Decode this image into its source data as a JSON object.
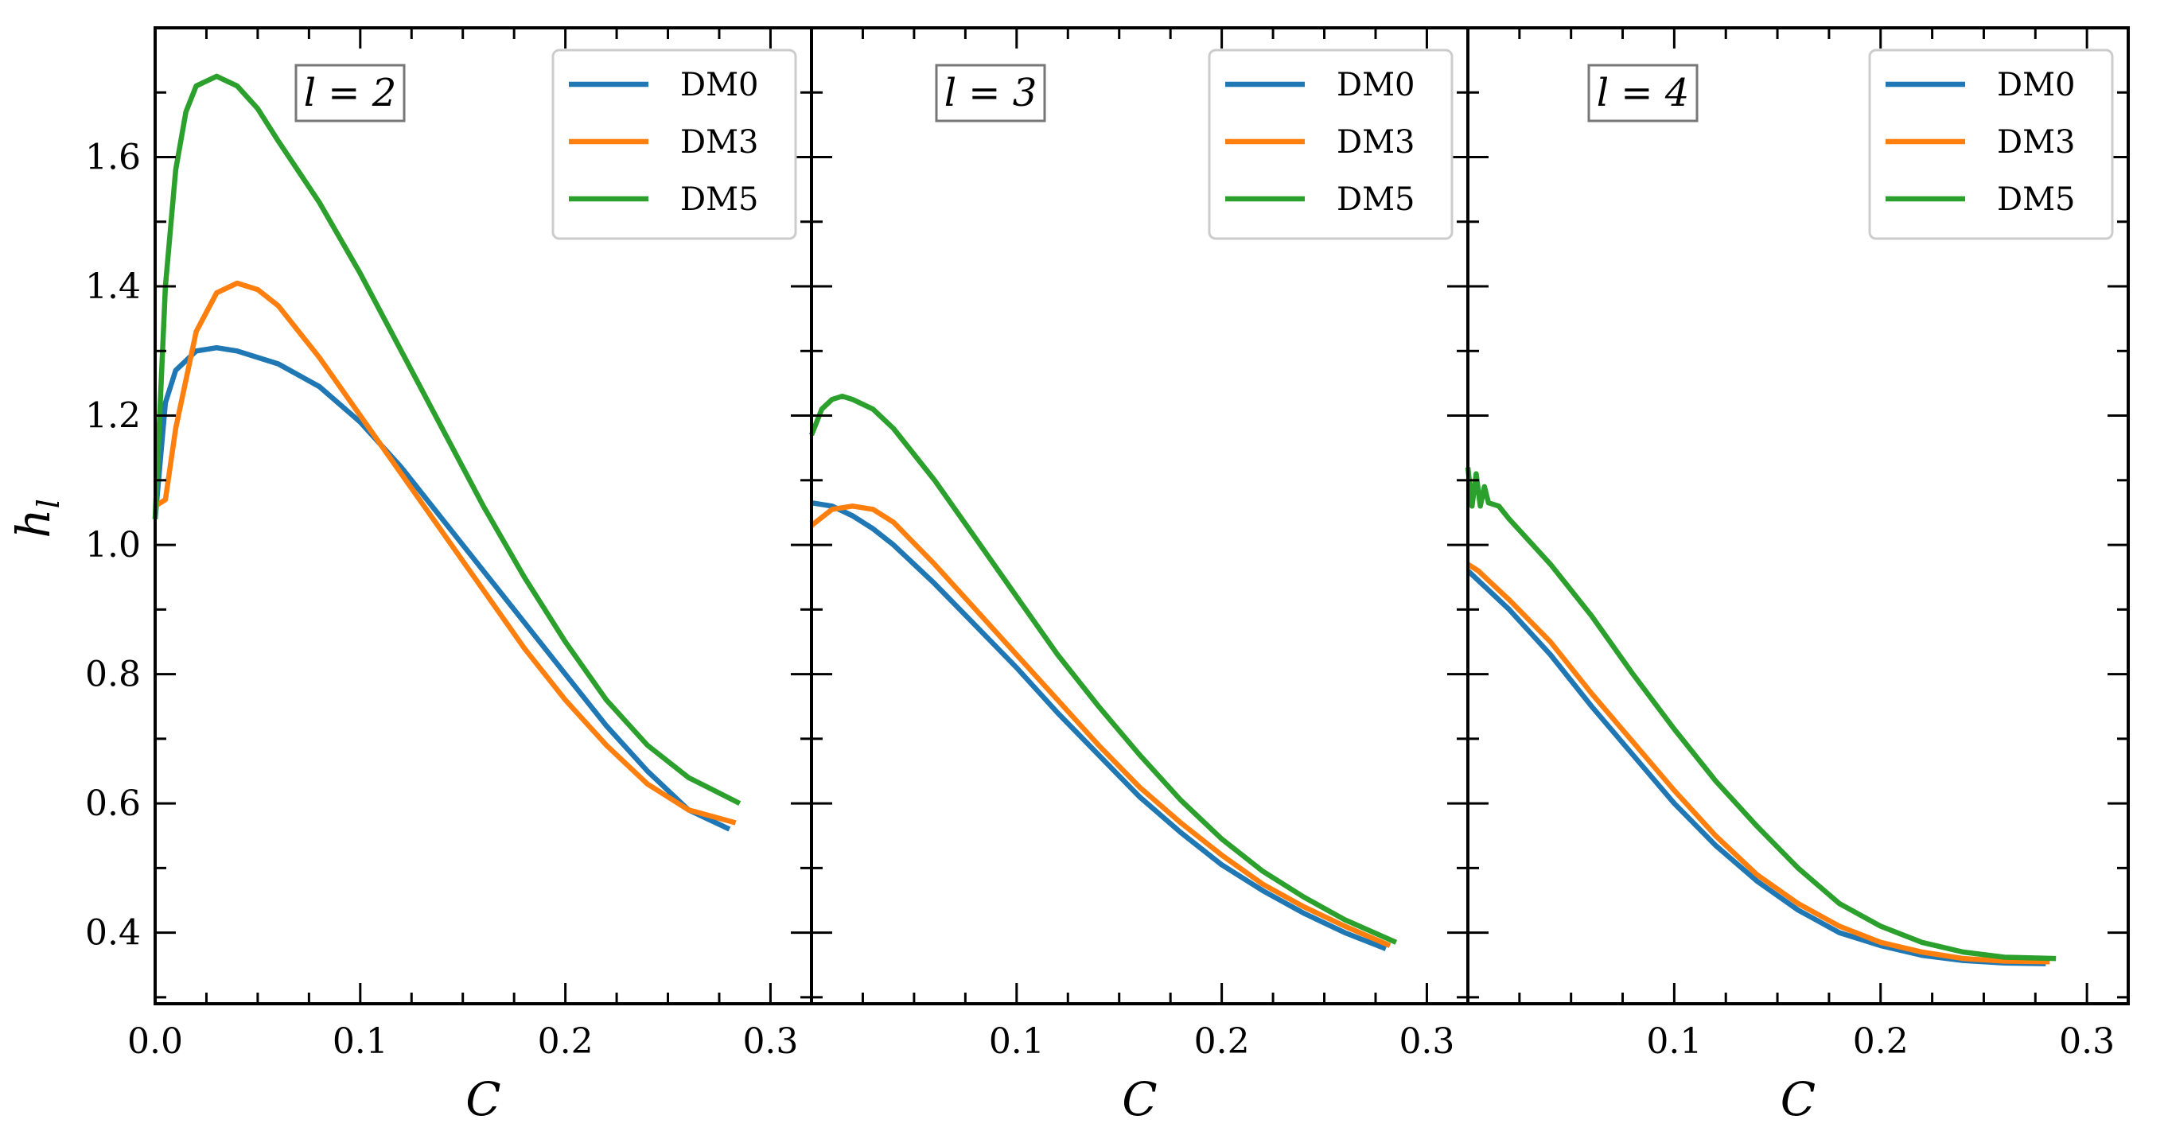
{
  "chart_data": [
    {
      "type": "line",
      "annotation": "l = 2",
      "xlabel": "C",
      "ylabel": "h_l",
      "xlim": [
        0.0,
        0.32
      ],
      "ylim": [
        0.29,
        1.8
      ],
      "xticks": [
        "0.0",
        "0.1",
        "0.2",
        "0.3"
      ],
      "yticks": [
        "0.4",
        "0.6",
        "0.8",
        "1.0",
        "1.2",
        "1.4",
        "1.6"
      ],
      "legend_position": "top-right",
      "series": [
        {
          "name": "DM0",
          "color": "#1f77b4",
          "x": [
            0.0,
            0.005,
            0.01,
            0.02,
            0.03,
            0.04,
            0.06,
            0.08,
            0.1,
            0.12,
            0.14,
            0.16,
            0.18,
            0.2,
            0.22,
            0.24,
            0.26,
            0.28
          ],
          "y": [
            1.04,
            1.22,
            1.27,
            1.3,
            1.305,
            1.3,
            1.28,
            1.245,
            1.19,
            1.12,
            1.04,
            0.96,
            0.88,
            0.8,
            0.72,
            0.65,
            0.59,
            0.56
          ]
        },
        {
          "name": "DM3",
          "color": "#ff7f0e",
          "x": [
            0.0,
            0.005,
            0.01,
            0.02,
            0.03,
            0.04,
            0.05,
            0.06,
            0.08,
            0.1,
            0.12,
            0.14,
            0.16,
            0.18,
            0.2,
            0.22,
            0.24,
            0.26,
            0.283
          ],
          "y": [
            1.06,
            1.07,
            1.18,
            1.33,
            1.39,
            1.405,
            1.395,
            1.37,
            1.29,
            1.2,
            1.11,
            1.02,
            0.93,
            0.84,
            0.76,
            0.69,
            0.63,
            0.59,
            0.57
          ]
        },
        {
          "name": "DM5",
          "color": "#2ca02c",
          "x": [
            0.0,
            0.005,
            0.01,
            0.015,
            0.02,
            0.03,
            0.04,
            0.05,
            0.06,
            0.08,
            0.1,
            0.12,
            0.14,
            0.16,
            0.18,
            0.2,
            0.22,
            0.24,
            0.26,
            0.285
          ],
          "y": [
            1.04,
            1.4,
            1.58,
            1.67,
            1.71,
            1.725,
            1.71,
            1.675,
            1.625,
            1.53,
            1.42,
            1.3,
            1.18,
            1.06,
            0.95,
            0.85,
            0.76,
            0.69,
            0.64,
            0.6
          ]
        }
      ],
      "legend": [
        "DM0",
        "DM3",
        "DM5"
      ]
    },
    {
      "type": "line",
      "annotation": "l = 3",
      "xlabel": "C",
      "xlim": [
        0.0,
        0.32
      ],
      "ylim": [
        0.29,
        1.8
      ],
      "xticks": [
        "0.1",
        "0.2",
        "0.3"
      ],
      "legend_position": "top-right",
      "series": [
        {
          "name": "DM0",
          "color": "#1f77b4",
          "x": [
            0.0,
            0.01,
            0.02,
            0.03,
            0.04,
            0.06,
            0.08,
            0.1,
            0.12,
            0.14,
            0.16,
            0.18,
            0.2,
            0.22,
            0.24,
            0.26,
            0.28
          ],
          "y": [
            1.065,
            1.06,
            1.045,
            1.025,
            1.0,
            0.94,
            0.875,
            0.81,
            0.74,
            0.675,
            0.61,
            0.555,
            0.505,
            0.465,
            0.43,
            0.4,
            0.375
          ]
        },
        {
          "name": "DM3",
          "color": "#ff7f0e",
          "x": [
            0.0,
            0.01,
            0.02,
            0.03,
            0.04,
            0.06,
            0.08,
            0.1,
            0.12,
            0.14,
            0.16,
            0.18,
            0.2,
            0.22,
            0.24,
            0.26,
            0.282
          ],
          "y": [
            1.03,
            1.055,
            1.06,
            1.055,
            1.035,
            0.97,
            0.9,
            0.83,
            0.76,
            0.69,
            0.625,
            0.57,
            0.52,
            0.475,
            0.44,
            0.41,
            0.38
          ]
        },
        {
          "name": "DM5",
          "color": "#2ca02c",
          "x": [
            0.0,
            0.005,
            0.01,
            0.015,
            0.02,
            0.03,
            0.04,
            0.05,
            0.06,
            0.08,
            0.1,
            0.12,
            0.14,
            0.16,
            0.18,
            0.2,
            0.22,
            0.24,
            0.26,
            0.285
          ],
          "y": [
            1.17,
            1.21,
            1.225,
            1.23,
            1.225,
            1.21,
            1.18,
            1.14,
            1.1,
            1.01,
            0.92,
            0.83,
            0.75,
            0.675,
            0.605,
            0.545,
            0.495,
            0.455,
            0.42,
            0.385
          ]
        }
      ],
      "legend": [
        "DM0",
        "DM3",
        "DM5"
      ]
    },
    {
      "type": "line",
      "annotation": "l = 4",
      "xlabel": "C",
      "xlim": [
        0.0,
        0.32
      ],
      "ylim": [
        0.29,
        1.8
      ],
      "xticks": [
        "0.1",
        "0.2",
        "0.3"
      ],
      "legend_position": "top-right",
      "series": [
        {
          "name": "DM0",
          "color": "#1f77b4",
          "x": [
            0.0,
            0.01,
            0.02,
            0.04,
            0.06,
            0.08,
            0.1,
            0.12,
            0.14,
            0.16,
            0.18,
            0.2,
            0.22,
            0.24,
            0.26,
            0.28
          ],
          "y": [
            0.96,
            0.93,
            0.9,
            0.83,
            0.75,
            0.675,
            0.6,
            0.535,
            0.48,
            0.435,
            0.4,
            0.38,
            0.365,
            0.357,
            0.353,
            0.352
          ]
        },
        {
          "name": "DM3",
          "color": "#ff7f0e",
          "x": [
            0.0,
            0.005,
            0.01,
            0.02,
            0.04,
            0.06,
            0.08,
            0.1,
            0.12,
            0.14,
            0.16,
            0.18,
            0.2,
            0.22,
            0.24,
            0.26,
            0.282
          ],
          "y": [
            0.97,
            0.96,
            0.945,
            0.915,
            0.85,
            0.77,
            0.695,
            0.62,
            0.55,
            0.49,
            0.445,
            0.41,
            0.385,
            0.37,
            0.36,
            0.356,
            0.355
          ]
        },
        {
          "name": "DM5",
          "color": "#2ca02c",
          "x": [
            0.0,
            0.002,
            0.004,
            0.006,
            0.008,
            0.01,
            0.015,
            0.02,
            0.04,
            0.06,
            0.08,
            0.1,
            0.12,
            0.14,
            0.16,
            0.18,
            0.2,
            0.22,
            0.24,
            0.26,
            0.285
          ],
          "y": [
            1.12,
            1.06,
            1.11,
            1.06,
            1.09,
            1.065,
            1.06,
            1.04,
            0.97,
            0.89,
            0.8,
            0.715,
            0.635,
            0.565,
            0.5,
            0.445,
            0.41,
            0.385,
            0.37,
            0.362,
            0.36
          ]
        }
      ],
      "legend": [
        "DM0",
        "DM3",
        "DM5"
      ]
    }
  ]
}
